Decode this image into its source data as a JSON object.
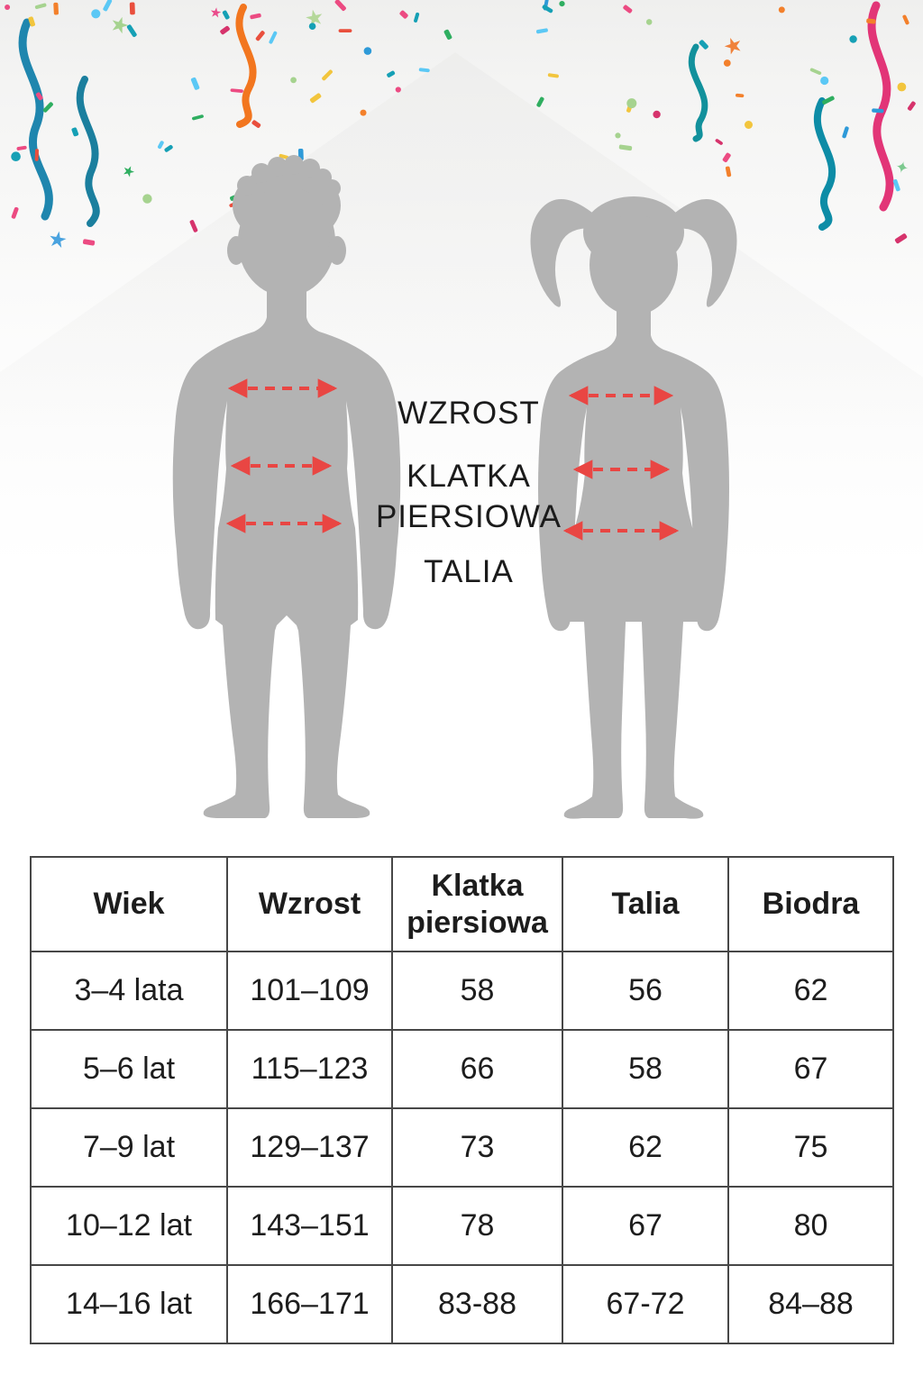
{
  "figure_labels": {
    "wzrost": "WZROST",
    "klatka_piersiowa": "KLATKA PIERSIOWA",
    "talia": "TALIA"
  },
  "size_table": {
    "headers": [
      "Wiek",
      "Wzrost",
      "Klatka piersiowa",
      "Talia",
      "Biodra"
    ],
    "rows": [
      [
        "3–4 lata",
        "101–109",
        "58",
        "56",
        "62"
      ],
      [
        "5–6 lat",
        "115–123",
        "66",
        "58",
        "67"
      ],
      [
        "7–9 lat",
        "129–137",
        "73",
        "62",
        "75"
      ],
      [
        "10–12 lat",
        "143–151",
        "78",
        "67",
        "80"
      ],
      [
        "14–16 lat",
        "166–171",
        "83-88",
        "67-72",
        "84–88"
      ]
    ]
  },
  "colors": {
    "silhouette_gray": "#b3b3b3",
    "arrow_red": "#e94643",
    "table_border": "#474747",
    "text": "#1d1d1d",
    "streamer_blue": "#1f86ae",
    "streamer_teal": "#12919c",
    "streamer_orange": "#f2761f",
    "streamer_pink": "#e23577",
    "confetti_palette": [
      "#ec4b82",
      "#f3802b",
      "#2e9ad8",
      "#5bc8f5",
      "#2fae60",
      "#a6d38f",
      "#16a0b5",
      "#e94f3d",
      "#f2c53d",
      "#d6336c"
    ]
  }
}
